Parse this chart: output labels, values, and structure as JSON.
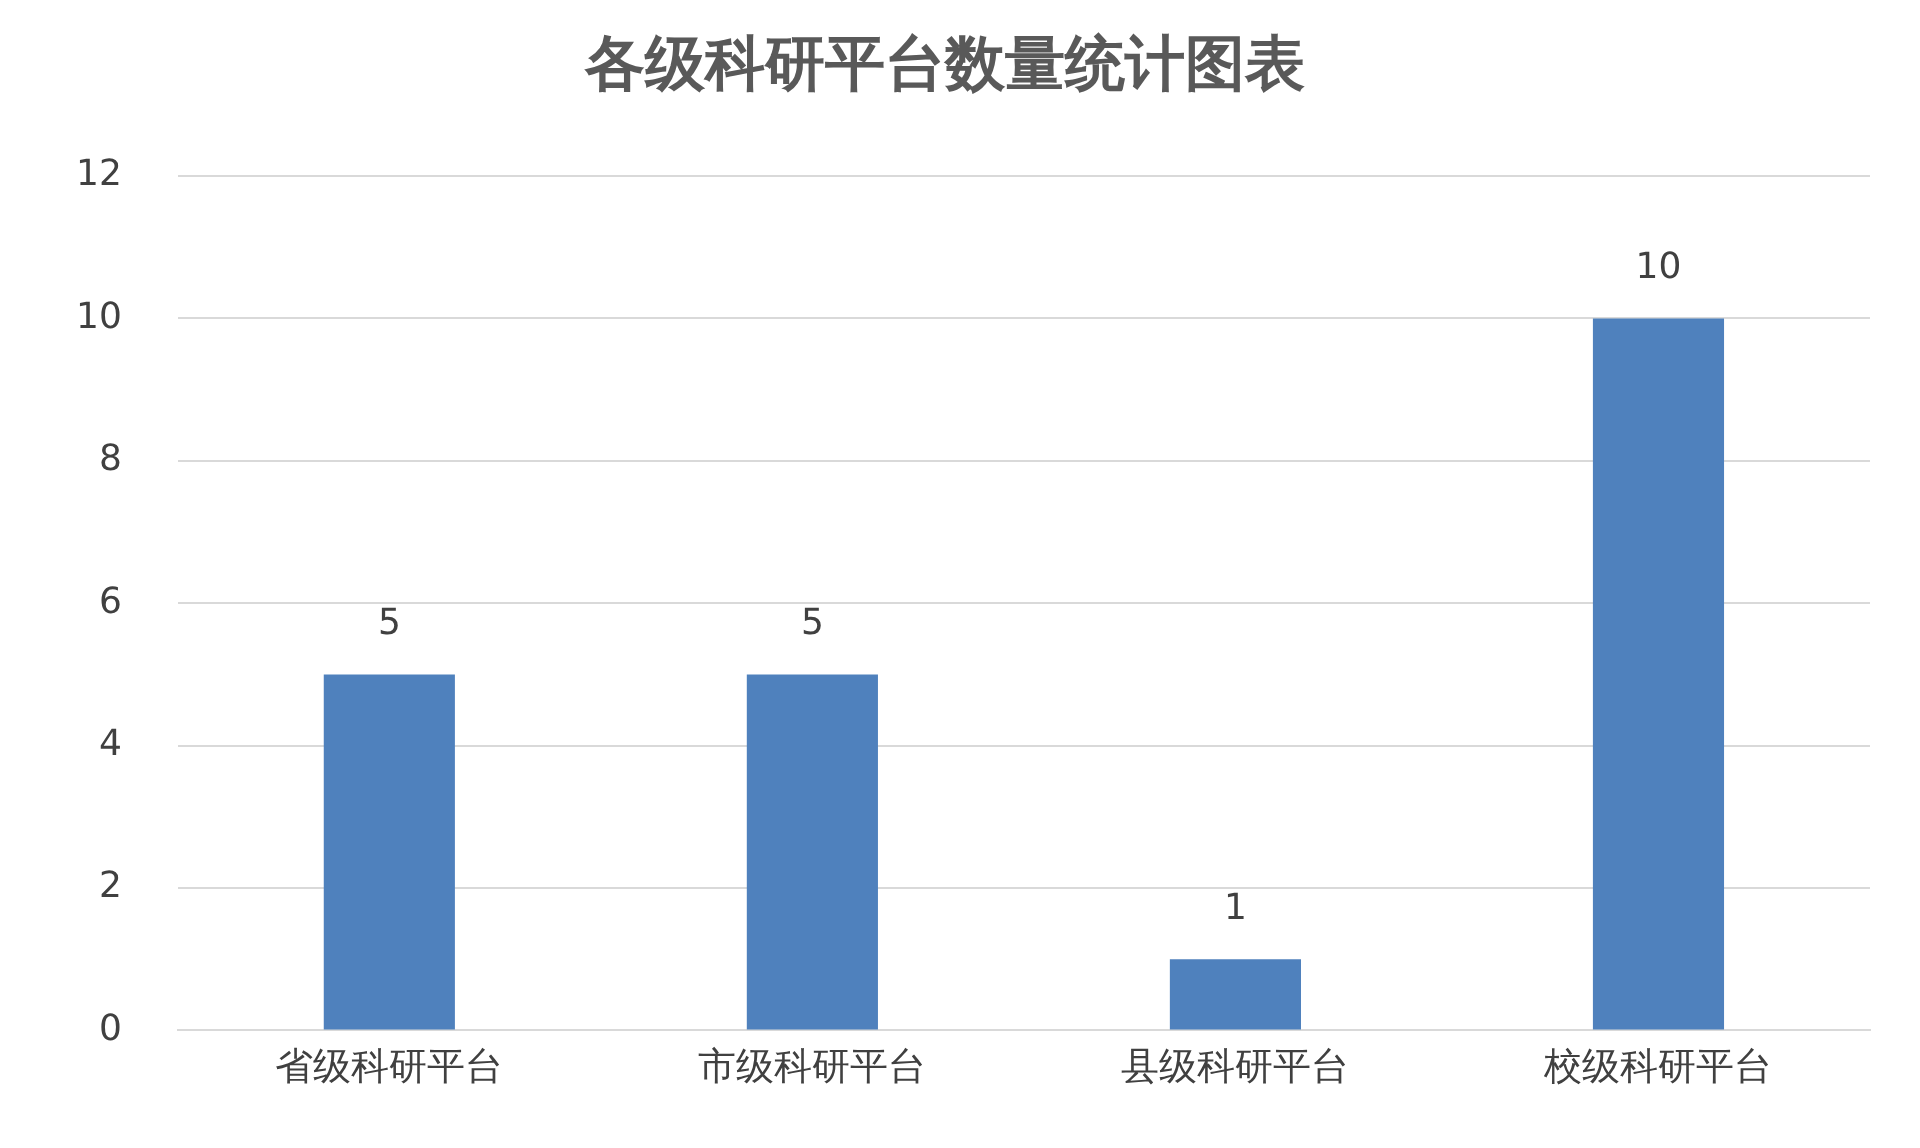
{
  "chart_data": {
    "type": "bar",
    "title": "各级科研平台数量统计图表",
    "categories": [
      "省级科研平台",
      "市级科研平台",
      "县级科研平台",
      "校级科研平台"
    ],
    "values": [
      5,
      5,
      1,
      10
    ],
    "color": "#4f81bd",
    "ylim": [
      0,
      12
    ],
    "yticks": [
      0,
      2,
      4,
      6,
      8,
      10,
      12
    ],
    "grid": "y",
    "data_labels": true,
    "legend": false
  }
}
